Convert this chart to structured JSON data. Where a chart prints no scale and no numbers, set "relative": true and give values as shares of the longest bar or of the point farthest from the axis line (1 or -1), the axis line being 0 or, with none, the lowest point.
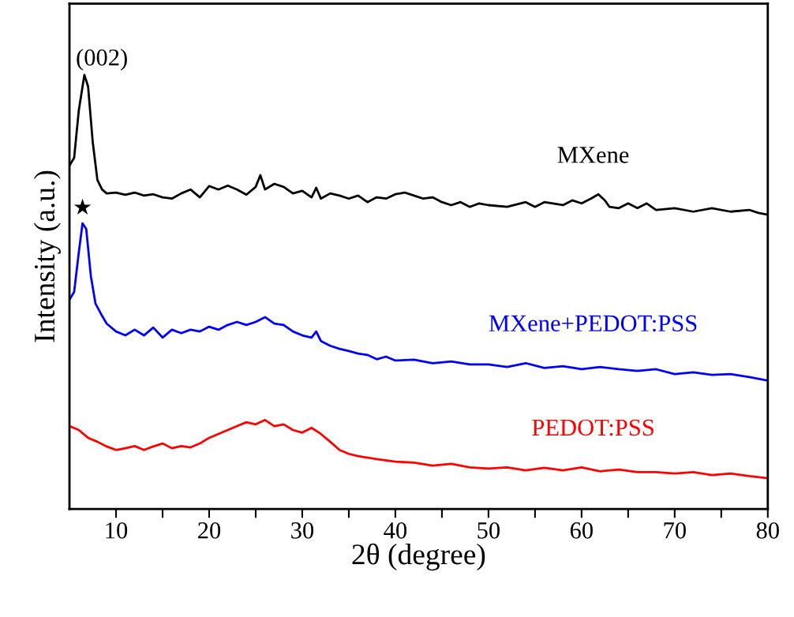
{
  "chart_data": {
    "type": "line",
    "xlabel": "2θ (degree)",
    "ylabel": "Intensity (a.u.)",
    "relative": true,
    "xlim": [
      5,
      80
    ],
    "xticks": [
      10,
      {
        "value": 15,
        "label": null
      },
      20,
      {
        "value": 25,
        "label": null
      },
      30,
      {
        "value": 35,
        "label": null
      },
      40,
      {
        "value": 45,
        "label": null
      },
      50,
      {
        "value": 55,
        "label": null
      },
      60,
      {
        "value": 65,
        "label": null
      },
      70,
      {
        "value": 75,
        "label": null
      },
      80
    ],
    "tick_labels": "x",
    "grid": false,
    "legend": false,
    "marker": "none",
    "line_style": "solid",
    "annotations": [
      {
        "text": "(002)",
        "x": 6.6,
        "y": 1.0
      },
      {
        "text": "★",
        "x": 6.4,
        "y": 0.658
      }
    ],
    "series": [
      {
        "name": "MXene",
        "color": "#000000",
        "x": [
          5,
          5.5,
          6,
          6.6,
          7,
          7.5,
          8,
          8.5,
          9,
          10,
          11,
          12,
          13,
          14,
          15,
          16,
          17,
          18,
          19,
          20,
          21,
          22,
          23,
          24,
          25,
          25.5,
          26,
          27,
          28,
          29,
          30,
          31,
          31.5,
          32,
          33,
          34,
          35,
          36,
          37,
          38,
          39,
          40,
          41,
          42,
          43,
          44,
          45,
          46,
          47,
          48,
          49,
          50,
          52,
          54,
          55,
          56,
          58,
          59,
          60,
          61,
          61.8,
          62.5,
          63,
          64,
          65,
          66,
          67,
          68,
          70,
          72,
          74,
          76,
          78,
          79,
          80
        ],
        "values": [
          0.791,
          0.809,
          0.918,
          1.0,
          0.973,
          0.845,
          0.758,
          0.736,
          0.727,
          0.729,
          0.724,
          0.729,
          0.722,
          0.725,
          0.718,
          0.715,
          0.727,
          0.736,
          0.718,
          0.744,
          0.736,
          0.745,
          0.736,
          0.724,
          0.742,
          0.769,
          0.736,
          0.749,
          0.742,
          0.727,
          0.733,
          0.718,
          0.74,
          0.715,
          0.727,
          0.722,
          0.715,
          0.722,
          0.707,
          0.718,
          0.715,
          0.725,
          0.729,
          0.722,
          0.715,
          0.718,
          0.707,
          0.7,
          0.707,
          0.696,
          0.704,
          0.7,
          0.696,
          0.707,
          0.696,
          0.707,
          0.7,
          0.711,
          0.704,
          0.715,
          0.725,
          0.711,
          0.696,
          0.693,
          0.704,
          0.693,
          0.704,
          0.689,
          0.693,
          0.685,
          0.693,
          0.685,
          0.689,
          0.682,
          0.678
        ]
      },
      {
        "name": "MXene+PEDOT:PSS",
        "color": "#0000ff",
        "x": [
          5,
          5.5,
          6,
          6.4,
          6.8,
          7.3,
          7.8,
          8.5,
          9,
          10,
          11,
          12,
          13,
          14,
          15,
          16,
          17,
          18,
          19,
          20,
          21,
          22,
          23,
          24,
          25,
          26,
          27,
          28,
          29,
          30,
          31,
          31.5,
          32,
          33,
          34,
          35,
          36,
          37,
          38,
          39,
          40,
          42,
          44,
          46,
          48,
          50,
          52,
          54,
          56,
          58,
          60,
          62,
          64,
          66,
          68,
          70,
          72,
          74,
          76,
          78,
          80
        ],
        "values": [
          0.482,
          0.5,
          0.591,
          0.658,
          0.645,
          0.536,
          0.473,
          0.445,
          0.427,
          0.409,
          0.4,
          0.413,
          0.4,
          0.418,
          0.395,
          0.413,
          0.405,
          0.413,
          0.409,
          0.42,
          0.413,
          0.424,
          0.431,
          0.424,
          0.431,
          0.442,
          0.427,
          0.424,
          0.409,
          0.4,
          0.395,
          0.409,
          0.387,
          0.376,
          0.369,
          0.364,
          0.358,
          0.355,
          0.345,
          0.351,
          0.342,
          0.344,
          0.336,
          0.34,
          0.333,
          0.333,
          0.327,
          0.336,
          0.325,
          0.329,
          0.322,
          0.327,
          0.322,
          0.318,
          0.322,
          0.311,
          0.315,
          0.309,
          0.311,
          0.304,
          0.296
        ]
      },
      {
        "name": "PEDOT:PSS",
        "color": "#ff0000",
        "x": [
          5,
          6,
          7,
          8,
          9,
          10,
          11,
          12,
          13,
          14,
          15,
          16,
          17,
          18,
          19,
          20,
          21,
          22,
          23,
          24,
          25,
          26,
          27,
          28,
          29,
          30,
          31,
          32,
          33,
          34,
          35,
          36,
          38,
          40,
          42,
          44,
          46,
          48,
          50,
          52,
          54,
          56,
          58,
          60,
          62,
          64,
          66,
          68,
          70,
          72,
          74,
          76,
          78,
          80
        ],
        "values": [
          0.191,
          0.182,
          0.164,
          0.155,
          0.144,
          0.136,
          0.14,
          0.145,
          0.136,
          0.144,
          0.151,
          0.14,
          0.145,
          0.142,
          0.151,
          0.164,
          0.173,
          0.182,
          0.191,
          0.2,
          0.195,
          0.205,
          0.191,
          0.195,
          0.182,
          0.176,
          0.187,
          0.173,
          0.155,
          0.136,
          0.127,
          0.122,
          0.115,
          0.109,
          0.107,
          0.1,
          0.104,
          0.096,
          0.093,
          0.096,
          0.089,
          0.095,
          0.089,
          0.096,
          0.087,
          0.091,
          0.085,
          0.085,
          0.082,
          0.085,
          0.078,
          0.082,
          0.076,
          0.071
        ]
      }
    ]
  }
}
